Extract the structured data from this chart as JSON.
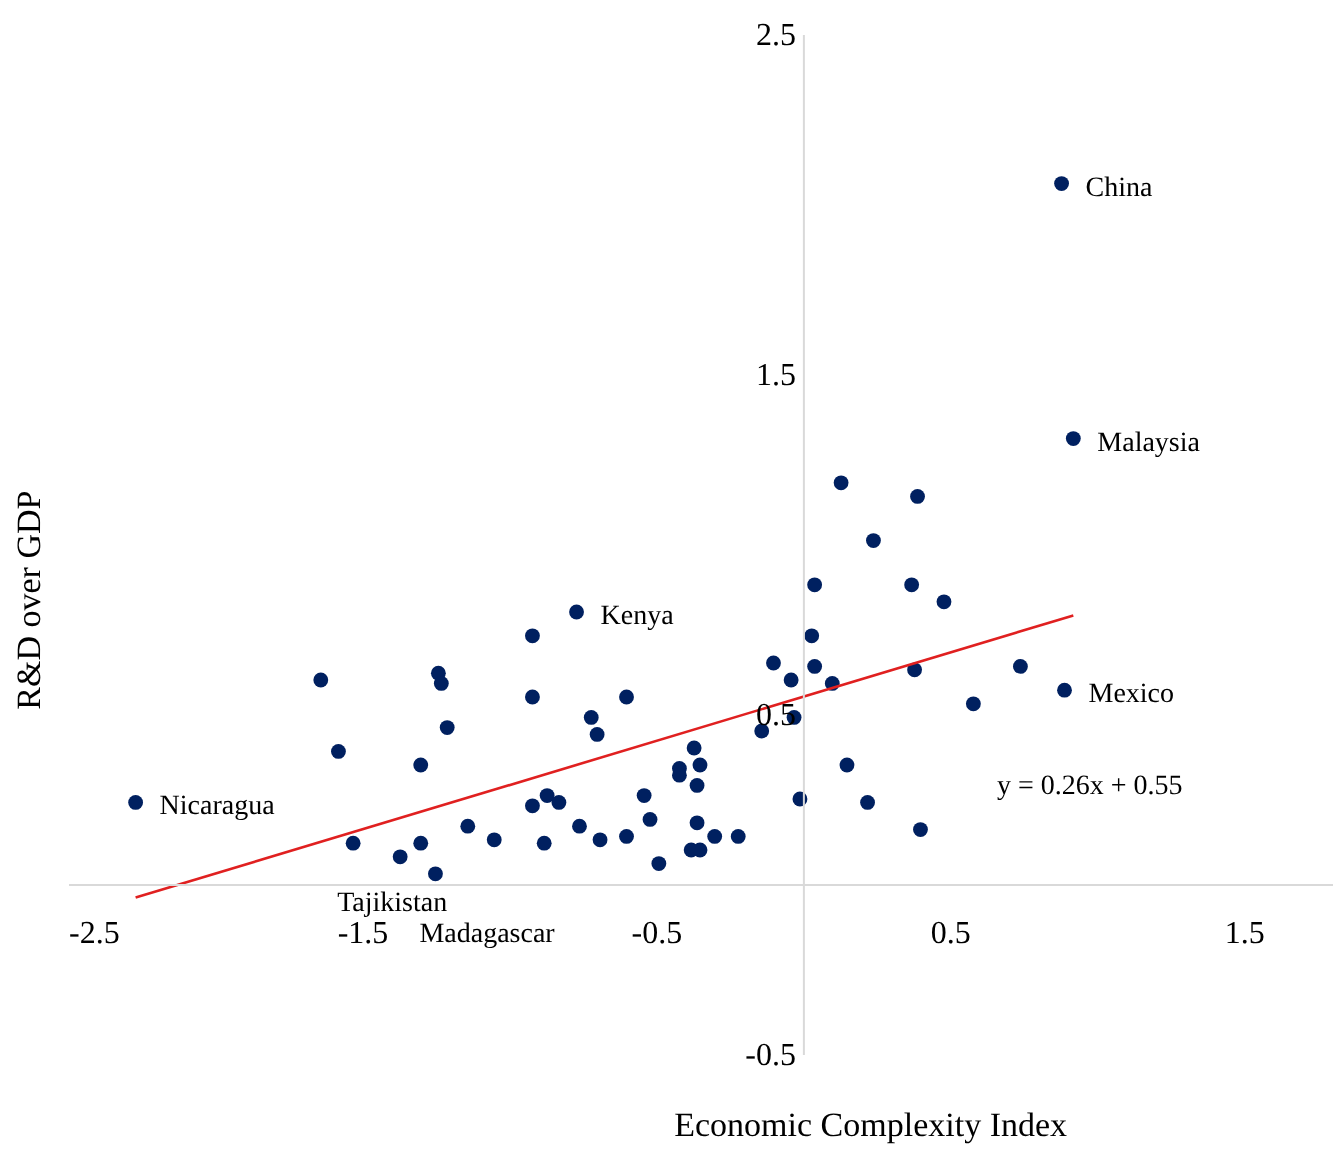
{
  "chart_data": {
    "type": "scatter",
    "xlabel": "Economic Complexity Index",
    "ylabel": "R&D over GDP",
    "xlim": [
      -2.5,
      1.8
    ],
    "xticks": [
      -2.5,
      -1.5,
      -0.5,
      0.5,
      1.5
    ],
    "ylim": [
      -0.5,
      2.5
    ],
    "yticks": [
      -0.5,
      0.5,
      1.5,
      2.5
    ],
    "grid": false,
    "annotations": [
      "y = 0.26x + 0.55"
    ],
    "series": [
      {
        "type": "scatter",
        "color": "#002060",
        "marker": "circle",
        "x": [
          -2.27,
          -1.64,
          -1.58,
          -1.53,
          -1.37,
          -1.3,
          -1.25,
          -1.3,
          -1.24,
          -1.23,
          -1.21,
          -1.14,
          -1.05,
          -0.92,
          -0.92,
          -0.92,
          -0.87,
          -0.88,
          -0.83,
          -0.77,
          -0.76,
          -0.72,
          -0.7,
          -0.69,
          -0.6,
          -0.6,
          -0.54,
          -0.52,
          -0.49,
          -0.42,
          -0.42,
          -0.37,
          -0.35,
          -0.36,
          -0.36,
          -0.38,
          -0.35,
          -0.3,
          -0.22,
          -0.14,
          -0.1,
          -0.04,
          -0.03,
          -0.01,
          0.03,
          0.04,
          0.04,
          0.1,
          0.13,
          0.15,
          0.22,
          0.24,
          0.37,
          0.38,
          0.39,
          0.4,
          0.48,
          0.58,
          0.74,
          0.89,
          0.92,
          0.88
        ],
        "values": [
          0.24,
          0.6,
          0.39,
          0.12,
          0.08,
          0.12,
          0.03,
          0.35,
          0.62,
          0.59,
          0.46,
          0.17,
          0.13,
          0.73,
          0.55,
          0.23,
          0.26,
          0.12,
          0.24,
          0.8,
          0.17,
          0.49,
          0.44,
          0.13,
          0.55,
          0.14,
          0.26,
          0.19,
          0.06,
          0.34,
          0.32,
          0.4,
          0.35,
          0.29,
          0.18,
          0.1,
          0.1,
          0.14,
          0.14,
          0.45,
          0.65,
          0.6,
          0.49,
          0.25,
          0.73,
          0.88,
          0.64,
          0.59,
          1.18,
          0.35,
          0.24,
          1.01,
          0.88,
          0.63,
          1.14,
          0.16,
          0.83,
          0.53,
          0.64,
          0.57,
          1.31,
          2.06
        ],
        "value_labels": [
          "Nicaragua",
          null,
          null,
          "Tajikistan",
          null,
          null,
          "Madagascar",
          null,
          null,
          null,
          null,
          null,
          null,
          null,
          null,
          null,
          null,
          null,
          null,
          "Kenya",
          null,
          null,
          null,
          null,
          null,
          null,
          null,
          null,
          null,
          null,
          null,
          null,
          null,
          null,
          null,
          null,
          null,
          null,
          null,
          null,
          null,
          null,
          null,
          null,
          null,
          null,
          null,
          null,
          null,
          null,
          null,
          null,
          null,
          null,
          null,
          null,
          null,
          null,
          null,
          "Mexico",
          "Malaysia",
          "China"
        ]
      },
      {
        "type": "line",
        "color": "#e02020",
        "line_style": "solid",
        "x": [
          -2.27,
          0.92
        ],
        "values": [
          -0.04,
          0.79
        ]
      }
    ]
  }
}
